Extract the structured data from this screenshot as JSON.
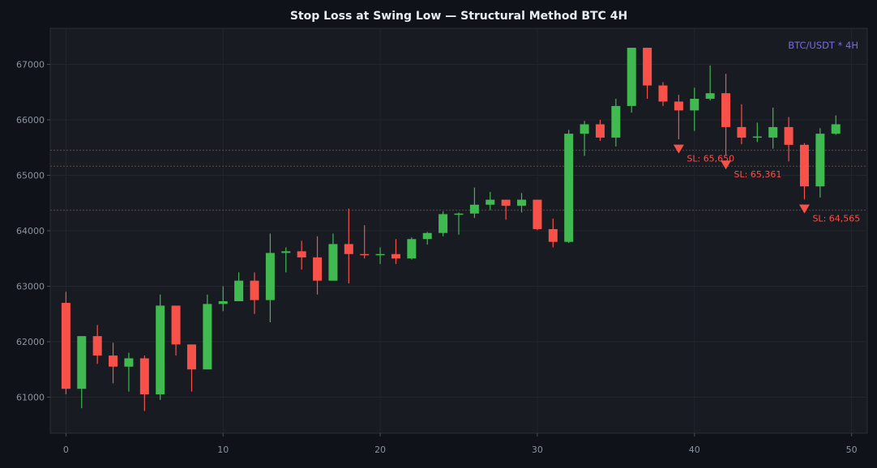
{
  "chart_data": {
    "type": "candlestick",
    "title": "Stop Loss at Swing Low — Structural Method BTC 4H",
    "xlabel": "",
    "ylabel": "",
    "watermark": "BTC/USDT * 4H",
    "xlim": [
      -1,
      51
    ],
    "ylim": [
      60350,
      67650
    ],
    "x_ticks": [
      0,
      10,
      20,
      30,
      40,
      50
    ],
    "y_ticks": [
      61000,
      62000,
      63000,
      64000,
      65000,
      66000,
      67000
    ],
    "grid": true,
    "colors": {
      "background": "#0f1218",
      "plot_background": "#181b21",
      "up": "#3fb950",
      "down": "#f85149",
      "stop_loss": "#f85149",
      "watermark": "#7b68ee",
      "axis_text": "#8b949e",
      "title": "#e6edf3"
    },
    "candles": [
      {
        "x": 0,
        "open": 62700,
        "high": 62900,
        "low": 61050,
        "close": 61150
      },
      {
        "x": 1,
        "open": 61150,
        "high": 62100,
        "low": 60800,
        "close": 62100
      },
      {
        "x": 2,
        "open": 62100,
        "high": 62300,
        "low": 61600,
        "close": 61750
      },
      {
        "x": 3,
        "open": 61750,
        "high": 61980,
        "low": 61250,
        "close": 61550
      },
      {
        "x": 4,
        "open": 61550,
        "high": 61800,
        "low": 61100,
        "close": 61700
      },
      {
        "x": 5,
        "open": 61700,
        "high": 61750,
        "low": 60750,
        "close": 61050
      },
      {
        "x": 6,
        "open": 61050,
        "high": 62850,
        "low": 60950,
        "close": 62650
      },
      {
        "x": 7,
        "open": 62650,
        "high": 62650,
        "low": 61750,
        "close": 61950
      },
      {
        "x": 8,
        "open": 61950,
        "high": 61950,
        "low": 61100,
        "close": 61500
      },
      {
        "x": 9,
        "open": 61500,
        "high": 62850,
        "low": 61500,
        "close": 62680
      },
      {
        "x": 10,
        "open": 62680,
        "high": 63000,
        "low": 62550,
        "close": 62730
      },
      {
        "x": 11,
        "open": 62730,
        "high": 63250,
        "low": 62730,
        "close": 63100
      },
      {
        "x": 12,
        "open": 63100,
        "high": 63250,
        "low": 62500,
        "close": 62750
      },
      {
        "x": 13,
        "open": 62750,
        "high": 63950,
        "low": 62350,
        "close": 63600
      },
      {
        "x": 14,
        "open": 63600,
        "high": 63700,
        "low": 63250,
        "close": 63630
      },
      {
        "x": 15,
        "open": 63630,
        "high": 63820,
        "low": 63300,
        "close": 63520
      },
      {
        "x": 16,
        "open": 63520,
        "high": 63900,
        "low": 62850,
        "close": 63100
      },
      {
        "x": 17,
        "open": 63100,
        "high": 63950,
        "low": 63100,
        "close": 63760
      },
      {
        "x": 18,
        "open": 63760,
        "high": 64400,
        "low": 63050,
        "close": 63580
      },
      {
        "x": 19,
        "open": 63580,
        "high": 64100,
        "low": 63500,
        "close": 63560
      },
      {
        "x": 20,
        "open": 63560,
        "high": 63700,
        "low": 63400,
        "close": 63580
      },
      {
        "x": 21,
        "open": 63580,
        "high": 63850,
        "low": 63400,
        "close": 63500
      },
      {
        "x": 22,
        "open": 63500,
        "high": 63880,
        "low": 63480,
        "close": 63850
      },
      {
        "x": 23,
        "open": 63850,
        "high": 63980,
        "low": 63750,
        "close": 63960
      },
      {
        "x": 24,
        "open": 63960,
        "high": 64350,
        "low": 63900,
        "close": 64300
      },
      {
        "x": 25,
        "open": 64300,
        "high": 64330,
        "low": 63930,
        "close": 64310
      },
      {
        "x": 26,
        "open": 64310,
        "high": 64780,
        "low": 64230,
        "close": 64470
      },
      {
        "x": 27,
        "open": 64470,
        "high": 64700,
        "low": 64370,
        "close": 64560
      },
      {
        "x": 28,
        "open": 64560,
        "high": 64560,
        "low": 64200,
        "close": 64450
      },
      {
        "x": 29,
        "open": 64450,
        "high": 64680,
        "low": 64330,
        "close": 64560
      },
      {
        "x": 30,
        "open": 64560,
        "high": 64560,
        "low": 64010,
        "close": 64030
      },
      {
        "x": 31,
        "open": 64030,
        "high": 64220,
        "low": 63700,
        "close": 63800
      },
      {
        "x": 32,
        "open": 63800,
        "high": 65820,
        "low": 63780,
        "close": 65750
      },
      {
        "x": 33,
        "open": 65750,
        "high": 65980,
        "low": 65350,
        "close": 65920
      },
      {
        "x": 34,
        "open": 65920,
        "high": 66000,
        "low": 65620,
        "close": 65680
      },
      {
        "x": 35,
        "open": 65680,
        "high": 66380,
        "low": 65520,
        "close": 66250
      },
      {
        "x": 36,
        "open": 66250,
        "high": 67300,
        "low": 66130,
        "close": 67300
      },
      {
        "x": 37,
        "open": 67300,
        "high": 67300,
        "low": 66380,
        "close": 66620
      },
      {
        "x": 38,
        "open": 66620,
        "high": 66680,
        "low": 66250,
        "close": 66330
      },
      {
        "x": 39,
        "open": 66330,
        "high": 66450,
        "low": 65650,
        "close": 66170
      },
      {
        "x": 40,
        "open": 66170,
        "high": 66580,
        "low": 65800,
        "close": 66380
      },
      {
        "x": 41,
        "open": 66380,
        "high": 66980,
        "low": 66350,
        "close": 66480
      },
      {
        "x": 42,
        "open": 66480,
        "high": 66830,
        "low": 65361,
        "close": 65870
      },
      {
        "x": 43,
        "open": 65870,
        "high": 66280,
        "low": 65560,
        "close": 65680
      },
      {
        "x": 44,
        "open": 65680,
        "high": 65950,
        "low": 65600,
        "close": 65700
      },
      {
        "x": 45,
        "open": 65680,
        "high": 66220,
        "low": 65480,
        "close": 65870
      },
      {
        "x": 46,
        "open": 65870,
        "high": 66050,
        "low": 65250,
        "close": 65550
      },
      {
        "x": 47,
        "open": 65550,
        "high": 65580,
        "low": 64565,
        "close": 64800
      },
      {
        "x": 48,
        "open": 64800,
        "high": 65850,
        "low": 64600,
        "close": 65750
      },
      {
        "x": 49,
        "open": 65750,
        "high": 66080,
        "low": 65730,
        "close": 65920
      }
    ],
    "stop_losses": [
      {
        "x": 39,
        "price": 65450,
        "label": "SL: 65,650"
      },
      {
        "x": 42,
        "price": 65165,
        "label": "SL: 65,361"
      },
      {
        "x": 47,
        "price": 64370,
        "label": "SL: 64,565"
      }
    ]
  }
}
